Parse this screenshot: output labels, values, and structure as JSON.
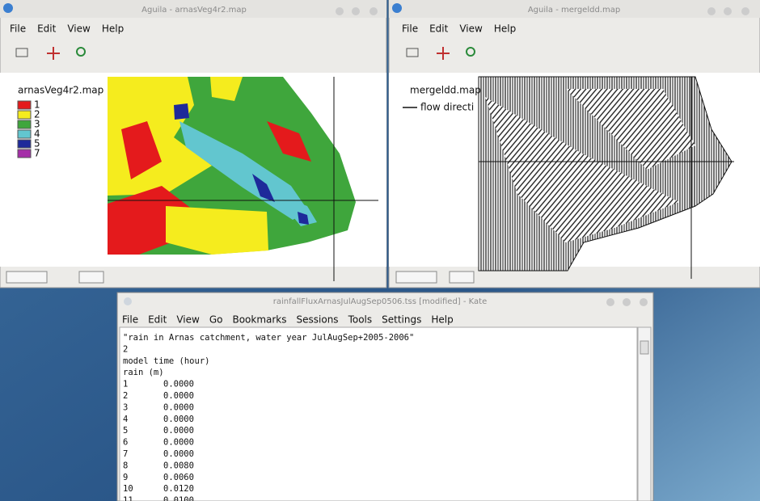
{
  "windows": [
    {
      "title": "Aguila - arnasVeg4r2.map",
      "menu": [
        "File",
        "Edit",
        "View",
        "Help"
      ],
      "legend": {
        "title": "arnasVeg4r2.map",
        "entries": [
          {
            "label": "1",
            "color": "#e41a1c"
          },
          {
            "label": "2",
            "color": "#f5ec1e"
          },
          {
            "label": "3",
            "color": "#3fa63c"
          },
          {
            "label": "4",
            "color": "#62c6cf"
          },
          {
            "label": "5",
            "color": "#1e2a9a"
          },
          {
            "label": "7",
            "color": "#a52ea8"
          }
        ]
      }
    },
    {
      "title": "Aguila - mergeldd.map",
      "menu": [
        "File",
        "Edit",
        "View",
        "Help"
      ],
      "legend": {
        "title": "mergeldd.map",
        "entries": [
          {
            "label": "flow directi"
          }
        ]
      }
    }
  ],
  "editor": {
    "title": "rainfallFluxArnasJulAugSep0506.tss [modified] - Kate",
    "menu": [
      "File",
      "Edit",
      "View",
      "Go",
      "Bookmarks",
      "Sessions",
      "Tools",
      "Settings",
      "Help"
    ],
    "header_lines": [
      "\"rain in Arnas catchment, water year JulAugSep+2005-2006\"",
      "2",
      "model time (hour)",
      "rain (m)"
    ],
    "rows": [
      [
        1,
        "0.0000"
      ],
      [
        2,
        "0.0000"
      ],
      [
        3,
        "0.0000"
      ],
      [
        4,
        "0.0000"
      ],
      [
        5,
        "0.0000"
      ],
      [
        6,
        "0.0000"
      ],
      [
        7,
        "0.0000"
      ],
      [
        8,
        "0.0080"
      ],
      [
        9,
        "0.0060"
      ],
      [
        10,
        "0.0120"
      ],
      [
        11,
        "0.0100"
      ]
    ]
  }
}
